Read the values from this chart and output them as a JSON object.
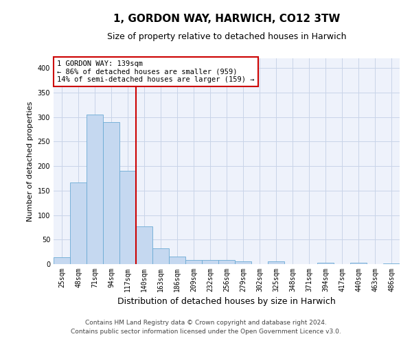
{
  "title": "1, GORDON WAY, HARWICH, CO12 3TW",
  "subtitle": "Size of property relative to detached houses in Harwich",
  "xlabel": "Distribution of detached houses by size in Harwich",
  "ylabel": "Number of detached properties",
  "categories": [
    "25sqm",
    "48sqm",
    "71sqm",
    "94sqm",
    "117sqm",
    "140sqm",
    "163sqm",
    "186sqm",
    "209sqm",
    "232sqm",
    "256sqm",
    "279sqm",
    "302sqm",
    "325sqm",
    "348sqm",
    "371sqm",
    "394sqm",
    "417sqm",
    "440sqm",
    "463sqm",
    "486sqm"
  ],
  "values": [
    14,
    166,
    305,
    290,
    191,
    77,
    32,
    16,
    9,
    8,
    8,
    5,
    0,
    5,
    0,
    0,
    3,
    0,
    3,
    0,
    2
  ],
  "bar_color": "#c5d8f0",
  "bar_edge_color": "#6aaad4",
  "annotation_line1": "1 GORDON WAY: 139sqm",
  "annotation_line2": "← 86% of detached houses are smaller (959)",
  "annotation_line3": "14% of semi-detached houses are larger (159) →",
  "annotation_box_color": "#ffffff",
  "annotation_box_edge_color": "#cc0000",
  "property_vline_color": "#cc0000",
  "grid_color": "#c8d4e8",
  "background_color": "#eef2fb",
  "ylim": [
    0,
    420
  ],
  "yticks": [
    0,
    50,
    100,
    150,
    200,
    250,
    300,
    350,
    400
  ],
  "footer_line1": "Contains HM Land Registry data © Crown copyright and database right 2024.",
  "footer_line2": "Contains public sector information licensed under the Open Government Licence v3.0.",
  "title_fontsize": 11,
  "subtitle_fontsize": 9,
  "tick_fontsize": 7,
  "ylabel_fontsize": 8,
  "xlabel_fontsize": 9,
  "footer_fontsize": 6.5,
  "annotation_fontsize": 7.5
}
